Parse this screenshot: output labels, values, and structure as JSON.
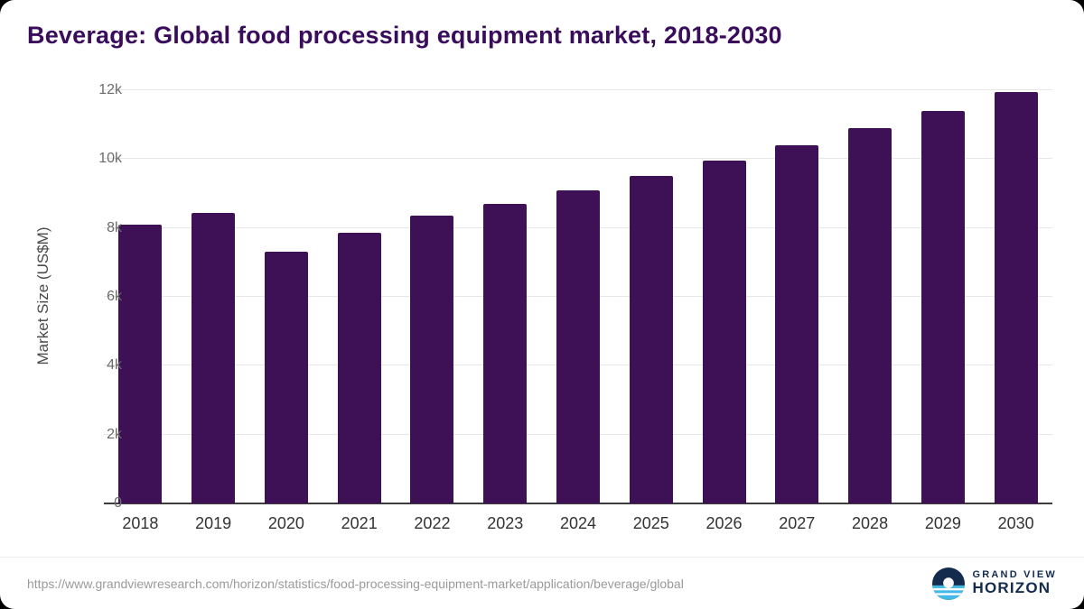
{
  "title": "Beverage: Global food processing equipment market, 2018-2030",
  "chart_data": {
    "type": "bar",
    "title": "Beverage: Global food processing equipment market, 2018-2030",
    "categories": [
      "2018",
      "2019",
      "2020",
      "2021",
      "2022",
      "2023",
      "2024",
      "2025",
      "2026",
      "2027",
      "2028",
      "2029",
      "2030"
    ],
    "values": [
      8100,
      8450,
      7300,
      7850,
      8350,
      8700,
      9100,
      9500,
      9950,
      10400,
      10900,
      11400,
      11950
    ],
    "xlabel": "",
    "ylabel": "Market Size (US$M)",
    "ylim": [
      0,
      12000
    ],
    "yticks": [
      0,
      2000,
      4000,
      6000,
      8000,
      10000,
      12000
    ],
    "ytick_labels": [
      "0",
      "2k",
      "4k",
      "6k",
      "8k",
      "10k",
      "12k"
    ],
    "grid": "horizontal",
    "legend_position": "none",
    "bar_color": "#3e1056"
  },
  "footer": {
    "source_url": "https://www.grandviewresearch.com/horizon/statistics/food-processing-equipment-market/application/beverage/global",
    "brand_line1": "GRAND VIEW",
    "brand_line2": "HORIZON"
  },
  "colors": {
    "title": "#3a0d5c",
    "bar": "#3e1056",
    "grid": "#e6e6e6",
    "axis": "#3d3d3d",
    "brand_navy": "#132c4e",
    "brand_blue": "#45b9e6"
  }
}
